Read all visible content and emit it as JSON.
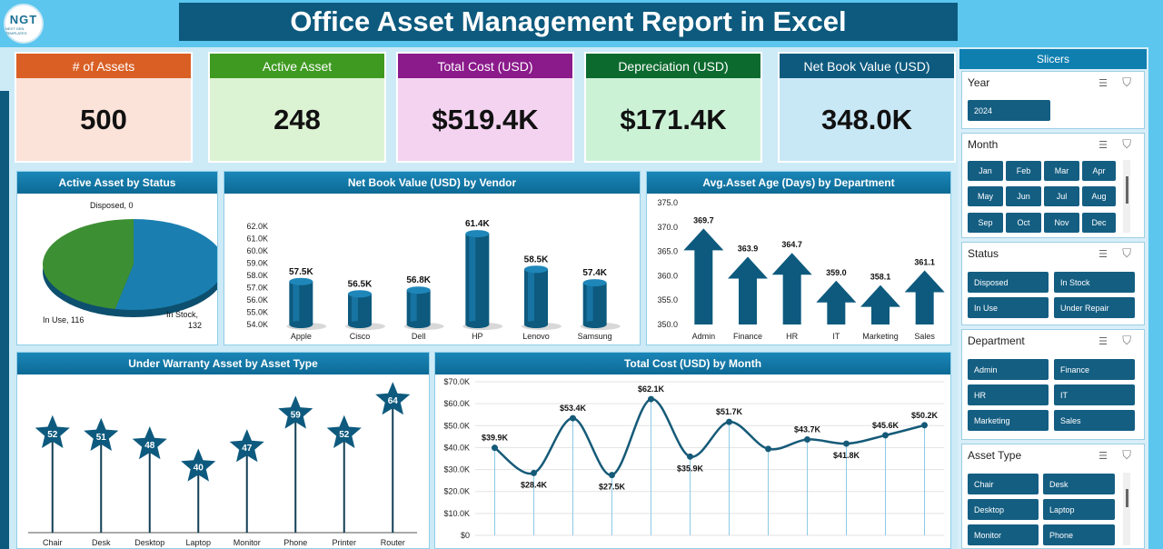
{
  "header": {
    "title": "Office Asset Management Report in Excel",
    "logo_text": "NGT",
    "logo_sub": "NEXT GEN TEMPLATES"
  },
  "kpis": [
    {
      "label": "# of Assets",
      "value": "500",
      "head_color": "#d95f24",
      "body_color": "#fbe3d9"
    },
    {
      "label": "Active Asset",
      "value": "248",
      "head_color": "#3f9a21",
      "body_color": "#dcf3d3"
    },
    {
      "label": "Total Cost (USD)",
      "value": "$519.4K",
      "head_color": "#8b1a8b",
      "body_color": "#f3d3f0"
    },
    {
      "label": "Depreciation (USD)",
      "value": "$171.4K",
      "head_color": "#0c6a2e",
      "body_color": "#ccf2d6"
    },
    {
      "label": "Net Book Value (USD)",
      "value": "348.0K",
      "head_color": "#0d5a7e",
      "body_color": "#c9e8f6"
    }
  ],
  "charts": {
    "status": {
      "title": "Active Asset by Status",
      "chart_data": {
        "type": "pie",
        "slices": [
          {
            "name": "Disposed",
            "value": 0,
            "label": "Disposed, 0"
          },
          {
            "name": "In Use",
            "value": 116,
            "label": "In Use, 116"
          },
          {
            "name": "In Stock",
            "value": 132,
            "label": "In Stock, 132"
          }
        ]
      }
    },
    "vendor": {
      "title": "Net Book Value (USD) by Vendor",
      "chart_data": {
        "type": "bar",
        "categories": [
          "Apple",
          "Cisco",
          "Dell",
          "HP",
          "Lenovo",
          "Samsung"
        ],
        "values": [
          57.5,
          56.5,
          56.8,
          61.4,
          58.5,
          57.4
        ],
        "data_labels": [
          "57.5K",
          "56.5K",
          "56.8K",
          "61.4K",
          "58.5K",
          "57.4K"
        ],
        "ylim": [
          54,
          62
        ],
        "yticks": [
          "54.0K",
          "55.0K",
          "56.0K",
          "57.0K",
          "58.0K",
          "59.0K",
          "60.0K",
          "61.0K",
          "62.0K"
        ]
      }
    },
    "age": {
      "title": "Avg.Asset Age (Days) by Department",
      "chart_data": {
        "type": "bar",
        "categories": [
          "Admin",
          "Finance",
          "HR",
          "IT",
          "Marketing",
          "Sales"
        ],
        "values": [
          369.7,
          363.9,
          364.7,
          359.0,
          358.1,
          361.1
        ],
        "data_labels": [
          "369.7",
          "363.9",
          "364.7",
          "359.0",
          "358.1",
          "361.1"
        ],
        "ylim": [
          350,
          375
        ],
        "yticks": [
          "350.0",
          "355.0",
          "360.0",
          "365.0",
          "370.0",
          "375.0"
        ]
      }
    },
    "warranty": {
      "title": "Under Warranty Asset by Asset Type",
      "chart_data": {
        "type": "bar",
        "categories": [
          "Chair",
          "Desk",
          "Desktop",
          "Laptop",
          "Monitor",
          "Phone",
          "Printer",
          "Router"
        ],
        "values": [
          52,
          51,
          48,
          40,
          47,
          59,
          52,
          64
        ],
        "data_labels": [
          "52",
          "51",
          "48",
          "40",
          "47",
          "59",
          "52",
          "64"
        ]
      }
    },
    "monthly": {
      "title": "Total Cost (USD) by Month",
      "chart_data": {
        "type": "line",
        "categories": [
          "Jan",
          "Feb",
          "Mar",
          "Apr",
          "May",
          "Jun",
          "Jul",
          "Aug",
          "Sep",
          "Oct",
          "Nov",
          "Dec"
        ],
        "values": [
          39.9,
          28.4,
          53.4,
          27.5,
          62.1,
          35.9,
          51.7,
          39.4,
          43.7,
          41.8,
          45.6,
          50.2
        ],
        "data_labels": [
          "$39.9K",
          "$28.4K",
          "$53.4K",
          "$27.5K",
          "$62.1K",
          "$35.9K",
          "$51.7K",
          "",
          "$43.7K",
          "$41.8K",
          "$45.6K",
          "$50.2K"
        ],
        "ylim": [
          0,
          70
        ],
        "yticks": [
          "$0",
          "$10.0K",
          "$20.0K",
          "$30.0K",
          "$40.0K",
          "$50.0K",
          "$60.0K",
          "$70.0K"
        ]
      }
    }
  },
  "slicers": {
    "title": "Slicers",
    "year": {
      "label": "Year",
      "items": [
        "2024"
      ]
    },
    "month": {
      "label": "Month",
      "items": [
        "Jan",
        "Feb",
        "Mar",
        "Apr",
        "May",
        "Jun",
        "Jul",
        "Aug",
        "Sep",
        "Oct",
        "Nov",
        "Dec"
      ]
    },
    "status": {
      "label": "Status",
      "items": [
        "Disposed",
        "In Stock",
        "In Use",
        "Under Repair"
      ]
    },
    "department": {
      "label": "Department",
      "items": [
        "Admin",
        "Finance",
        "HR",
        "IT",
        "Marketing",
        "Sales"
      ]
    },
    "asset_type": {
      "label": "Asset Type",
      "items": [
        "Chair",
        "Desk",
        "Desktop",
        "Laptop",
        "Monitor",
        "Phone"
      ]
    }
  },
  "colors": {
    "bar": "#0d5a7e",
    "bar_light": "#1d7eb0",
    "line": "#155a78",
    "pie_blue": "#1a7fb0",
    "pie_green": "#3d8f33"
  }
}
